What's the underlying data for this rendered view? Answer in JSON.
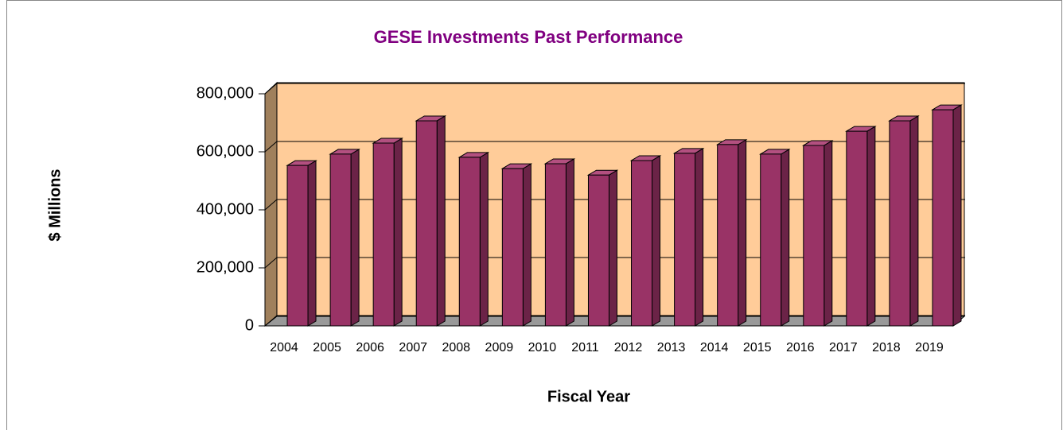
{
  "chart_data": {
    "type": "bar3d",
    "title": "GESE  Investments Past Performance",
    "xlabel": "Fiscal Year",
    "ylabel": "$ Millions",
    "categories": [
      "2004",
      "2005",
      "2006",
      "2007",
      "2008",
      "2009",
      "2010",
      "2011",
      "2012",
      "2013",
      "2014",
      "2015",
      "2016",
      "2017",
      "2018",
      "2019"
    ],
    "values": [
      553000,
      592000,
      630000,
      707000,
      581000,
      542000,
      559000,
      520000,
      570000,
      595000,
      625000,
      592000,
      622000,
      671000,
      707000,
      745000
    ],
    "color": "#993366",
    "ylim": [
      0,
      800000
    ],
    "yticks": [
      {
        "value": 0,
        "label": "0"
      },
      {
        "value": 200000,
        "label": "200,000"
      },
      {
        "value": 400000,
        "label": "400,000"
      },
      {
        "value": 600000,
        "label": "600,000"
      },
      {
        "value": 800000,
        "label": "800,000"
      }
    ],
    "grid": true
  }
}
